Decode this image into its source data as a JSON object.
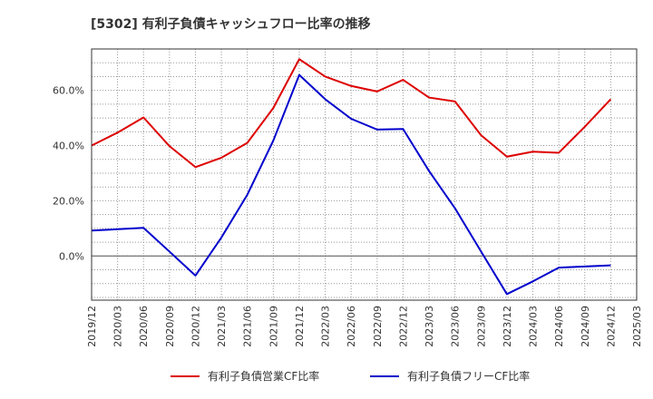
{
  "chart_data": {
    "type": "line",
    "title": "[5302]  有利子負債キャッシュフロー比率の推移",
    "xlabel": "",
    "ylabel": "",
    "x": [
      "2019/12",
      "2020/03",
      "2020/06",
      "2020/09",
      "2020/12",
      "2021/03",
      "2021/06",
      "2021/09",
      "2021/12",
      "2022/03",
      "2022/06",
      "2022/09",
      "2022/12",
      "2023/03",
      "2023/06",
      "2023/09",
      "2023/12",
      "2024/03",
      "2024/06",
      "2024/09",
      "2024/12",
      "2025/03"
    ],
    "ylim": [
      -16,
      75
    ],
    "yticks": [
      0,
      20,
      40,
      60
    ],
    "ytick_labels": [
      "0.0%",
      "20.0%",
      "40.0%",
      "60.0%"
    ],
    "grid": true,
    "legend_position": "bottom",
    "series": [
      {
        "name": "有利子負債営業CF比率",
        "color": "#dd0000",
        "values": [
          40.0,
          44.7,
          50.2,
          39.8,
          32.2,
          35.6,
          41.0,
          53.6,
          71.3,
          65.0,
          61.6,
          59.6,
          63.8,
          57.4,
          56.0,
          43.8,
          36.0,
          37.8,
          37.4,
          46.8,
          56.8,
          null
        ]
      },
      {
        "name": "有利子負債フリーCF比率",
        "color": "#0000cc",
        "values": [
          9.2,
          9.7,
          10.2,
          1.6,
          -7.1,
          6.7,
          22.2,
          41.8,
          65.6,
          56.8,
          49.7,
          45.8,
          46.0,
          30.8,
          17.3,
          1.7,
          -13.8,
          -9.2,
          -4.2,
          -3.8,
          -3.4,
          null
        ]
      }
    ]
  }
}
